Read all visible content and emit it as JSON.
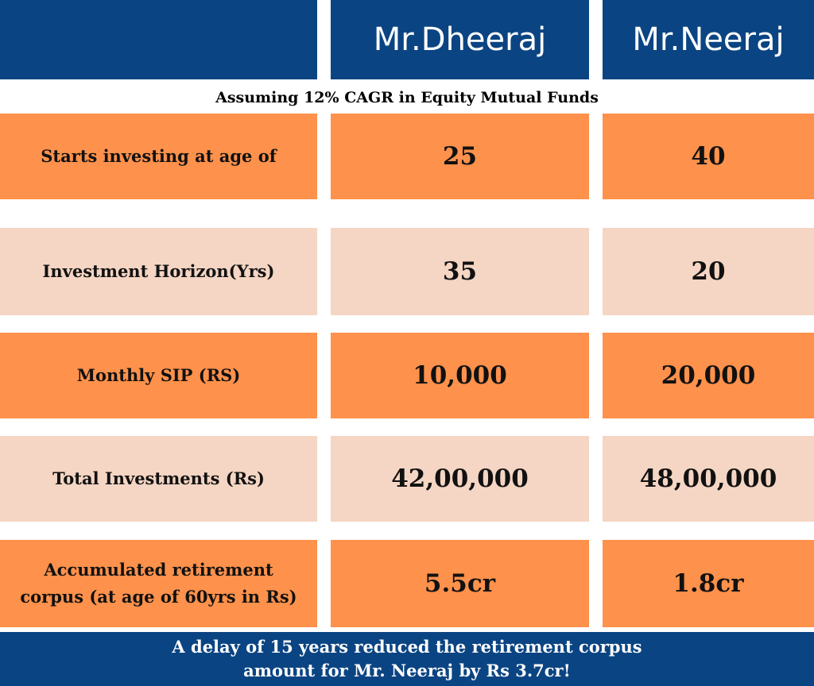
{
  "header": {
    "columns": [
      "Mr.Dheeraj",
      "Mr.Neeraj"
    ]
  },
  "subtitle": "Assuming 12% CAGR in Equity Mutual Funds",
  "table": {
    "rows": [
      [
        "Starts investing at age of",
        "25",
        "40"
      ],
      [
        "Investment Horizon(Yrs)",
        "35",
        "20"
      ],
      [
        "Monthly SIP (RS)",
        "10,000",
        "20,000"
      ],
      [
        "Total Investments (Rs)",
        "42,00,000",
        "48,00,000"
      ],
      [
        "Accumulated retirement corpus (at age of 60yrs in Rs)",
        "5.5cr",
        "1.8cr"
      ]
    ]
  },
  "footer": {
    "lines": [
      "A delay of 15 years reduced the retirement corpus",
      "amount for Mr. Neeraj by Rs 3.7cr!"
    ]
  }
}
